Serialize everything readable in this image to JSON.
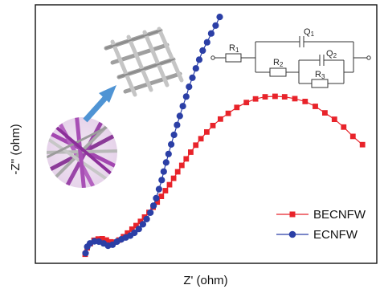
{
  "chart_data": {
    "type": "scatter",
    "xlabel": "Z' (ohm)",
    "ylabel": "-Z'' (ohm)",
    "grid": false,
    "legend_position": "bottom-right",
    "xlim": [
      0,
      100
    ],
    "ylim": [
      0,
      100
    ],
    "series": [
      {
        "name": "BECNFW",
        "color": "#e8232a",
        "marker": "square",
        "x": [
          14.6,
          15.2,
          16.1,
          17.2,
          18.4,
          19.6,
          20.8,
          22.0,
          23.2,
          24.5,
          25.8,
          27.0,
          28.3,
          29.5,
          30.8,
          32.0,
          33.3,
          34.5,
          35.7,
          36.9,
          38.1,
          39.3,
          40.5,
          41.7,
          42.9,
          44.2,
          45.5,
          47.0,
          48.5,
          50.2,
          52.0,
          54.2,
          56.5,
          59.0,
          61.8,
          64.5,
          67.3,
          70.2,
          73.0,
          76.0,
          79.0,
          82.0,
          84.8,
          87.6,
          90.3,
          93.0,
          95.8
        ],
        "y": [
          3.5,
          6.0,
          7.6,
          8.9,
          9.4,
          9.5,
          9.0,
          8.3,
          8.2,
          9.0,
          10.3,
          11.7,
          13.2,
          14.6,
          16.2,
          17.9,
          19.7,
          21.7,
          23.7,
          25.9,
          28.1,
          30.4,
          32.9,
          35.4,
          37.9,
          40.4,
          43.0,
          45.7,
          48.2,
          50.8,
          53.3,
          55.8,
          58.0,
          60.3,
          62.2,
          63.6,
          64.4,
          64.6,
          64.4,
          63.7,
          62.6,
          60.7,
          58.2,
          55.7,
          52.7,
          49.1,
          45.9
        ]
      },
      {
        "name": "ECNFW",
        "color": "#2b3fa6",
        "marker": "circle",
        "x": [
          14.7,
          15.2,
          16.0,
          17.3,
          18.6,
          20.0,
          21.3,
          22.6,
          23.9,
          25.2,
          26.5,
          27.8,
          29.0,
          30.3,
          31.5,
          32.6,
          33.7,
          34.6,
          35.4,
          36.2,
          37.0,
          37.6,
          38.3,
          39.0,
          39.8,
          40.6,
          41.5,
          42.3,
          43.2,
          44.2,
          45.0,
          46.0,
          47.0,
          48.0,
          49.0,
          50.3,
          51.5,
          52.8,
          54.0
        ],
        "y": [
          3.9,
          6.4,
          7.7,
          8.5,
          8.4,
          7.7,
          6.8,
          7.2,
          8.4,
          9.3,
          10.0,
          10.7,
          11.8,
          13.3,
          15.1,
          17.1,
          19.6,
          22.3,
          25.2,
          28.7,
          32.2,
          35.5,
          39.0,
          42.3,
          46.0,
          49.7,
          53.5,
          57.0,
          60.8,
          64.5,
          68.3,
          71.8,
          75.4,
          78.8,
          82.3,
          85.5,
          88.9,
          92.0,
          95.3
        ]
      }
    ]
  }
}
